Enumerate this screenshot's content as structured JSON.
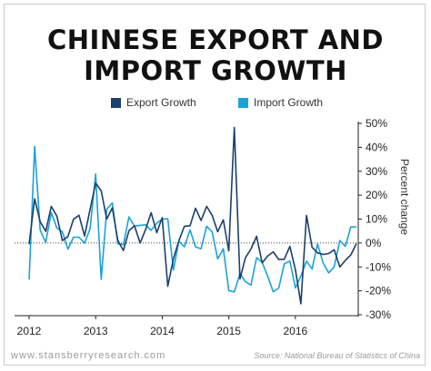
{
  "title_line1": "CHINESE EXPORT AND",
  "title_line2": "IMPORT GROWTH",
  "footer": {
    "site": "www.stansberryresearch.com",
    "source": "Source: National Bureau of Statistics of China"
  },
  "colors": {
    "export": "#1b3f6e",
    "import": "#1aa3d8",
    "axis": "#222222"
  },
  "chart_data": {
    "type": "line",
    "title": "CHINESE EXPORT AND IMPORT GROWTH",
    "ylabel": "Percent change",
    "ylim": [
      -30,
      50
    ],
    "xlim": [
      2012,
      2016.917
    ],
    "x_ticks": [
      2012,
      2013,
      2014,
      2015,
      2016
    ],
    "x_tick_labels": [
      "2012",
      "2013",
      "2014",
      "2015",
      "2016"
    ],
    "y_ticks": [
      50,
      40,
      30,
      20,
      10,
      0,
      -10,
      -20,
      -30
    ],
    "y_tick_labels": [
      "50%",
      "40%",
      "30%",
      "20%",
      "10%",
      "0%",
      "-10%",
      "-20%",
      "-30%"
    ],
    "legend_position": "top",
    "x": [
      2012.0,
      2012.083,
      2012.167,
      2012.25,
      2012.333,
      2012.417,
      2012.5,
      2012.583,
      2012.667,
      2012.75,
      2012.833,
      2012.917,
      2013.0,
      2013.083,
      2013.167,
      2013.25,
      2013.333,
      2013.417,
      2013.5,
      2013.583,
      2013.667,
      2013.75,
      2013.833,
      2013.917,
      2014.0,
      2014.083,
      2014.167,
      2014.25,
      2014.333,
      2014.417,
      2014.5,
      2014.583,
      2014.667,
      2014.75,
      2014.833,
      2014.917,
      2015.0,
      2015.083,
      2015.167,
      2015.25,
      2015.333,
      2015.417,
      2015.5,
      2015.583,
      2015.667,
      2015.75,
      2015.833,
      2015.917,
      2016.0,
      2016.083,
      2016.167,
      2016.25,
      2016.333,
      2016.417,
      2016.5,
      2016.583,
      2016.667,
      2016.75,
      2016.833,
      2016.917
    ],
    "series": [
      {
        "name": "Export Growth",
        "values": [
          -0.5,
          18.4,
          8.9,
          4.9,
          15.3,
          11.3,
          1.0,
          2.7,
          9.9,
          11.6,
          2.9,
          14.1,
          25.0,
          21.8,
          10.0,
          14.7,
          1.0,
          -3.1,
          5.1,
          7.2,
          0.0,
          5.6,
          12.7,
          4.3,
          10.6,
          -18.1,
          -6.6,
          0.9,
          7.0,
          7.2,
          14.5,
          9.4,
          15.3,
          11.6,
          4.7,
          9.7,
          -3.3,
          48.3,
          -15.0,
          -6.2,
          -2.5,
          2.8,
          -8.3,
          -5.5,
          -3.7,
          -6.9,
          -6.8,
          -1.4,
          -11.2,
          -25.4,
          11.5,
          -1.8,
          -4.1,
          -4.8,
          -4.4,
          -2.8,
          -10.0,
          -7.3,
          -5.0,
          -0.2
        ]
      },
      {
        "name": "Import Growth",
        "values": [
          -15.3,
          40.3,
          5.3,
          0.3,
          12.7,
          6.3,
          4.7,
          -2.6,
          2.4,
          2.4,
          0.0,
          6.0,
          28.8,
          -15.2,
          14.1,
          16.8,
          -0.3,
          -0.7,
          10.9,
          7.0,
          7.4,
          7.6,
          5.3,
          8.3,
          10.0,
          10.1,
          -11.3,
          0.8,
          -1.6,
          5.5,
          -1.6,
          -2.4,
          7.0,
          4.6,
          -6.7,
          -2.4,
          -19.9,
          -20.5,
          -12.7,
          -16.2,
          -17.6,
          -6.1,
          -8.1,
          -13.8,
          -20.4,
          -18.8,
          -8.7,
          -7.6,
          -18.8,
          -13.8,
          -7.6,
          -10.9,
          -0.4,
          -8.4,
          -12.5,
          -10.0,
          1.0,
          -1.4,
          6.7,
          6.7
        ]
      }
    ]
  }
}
